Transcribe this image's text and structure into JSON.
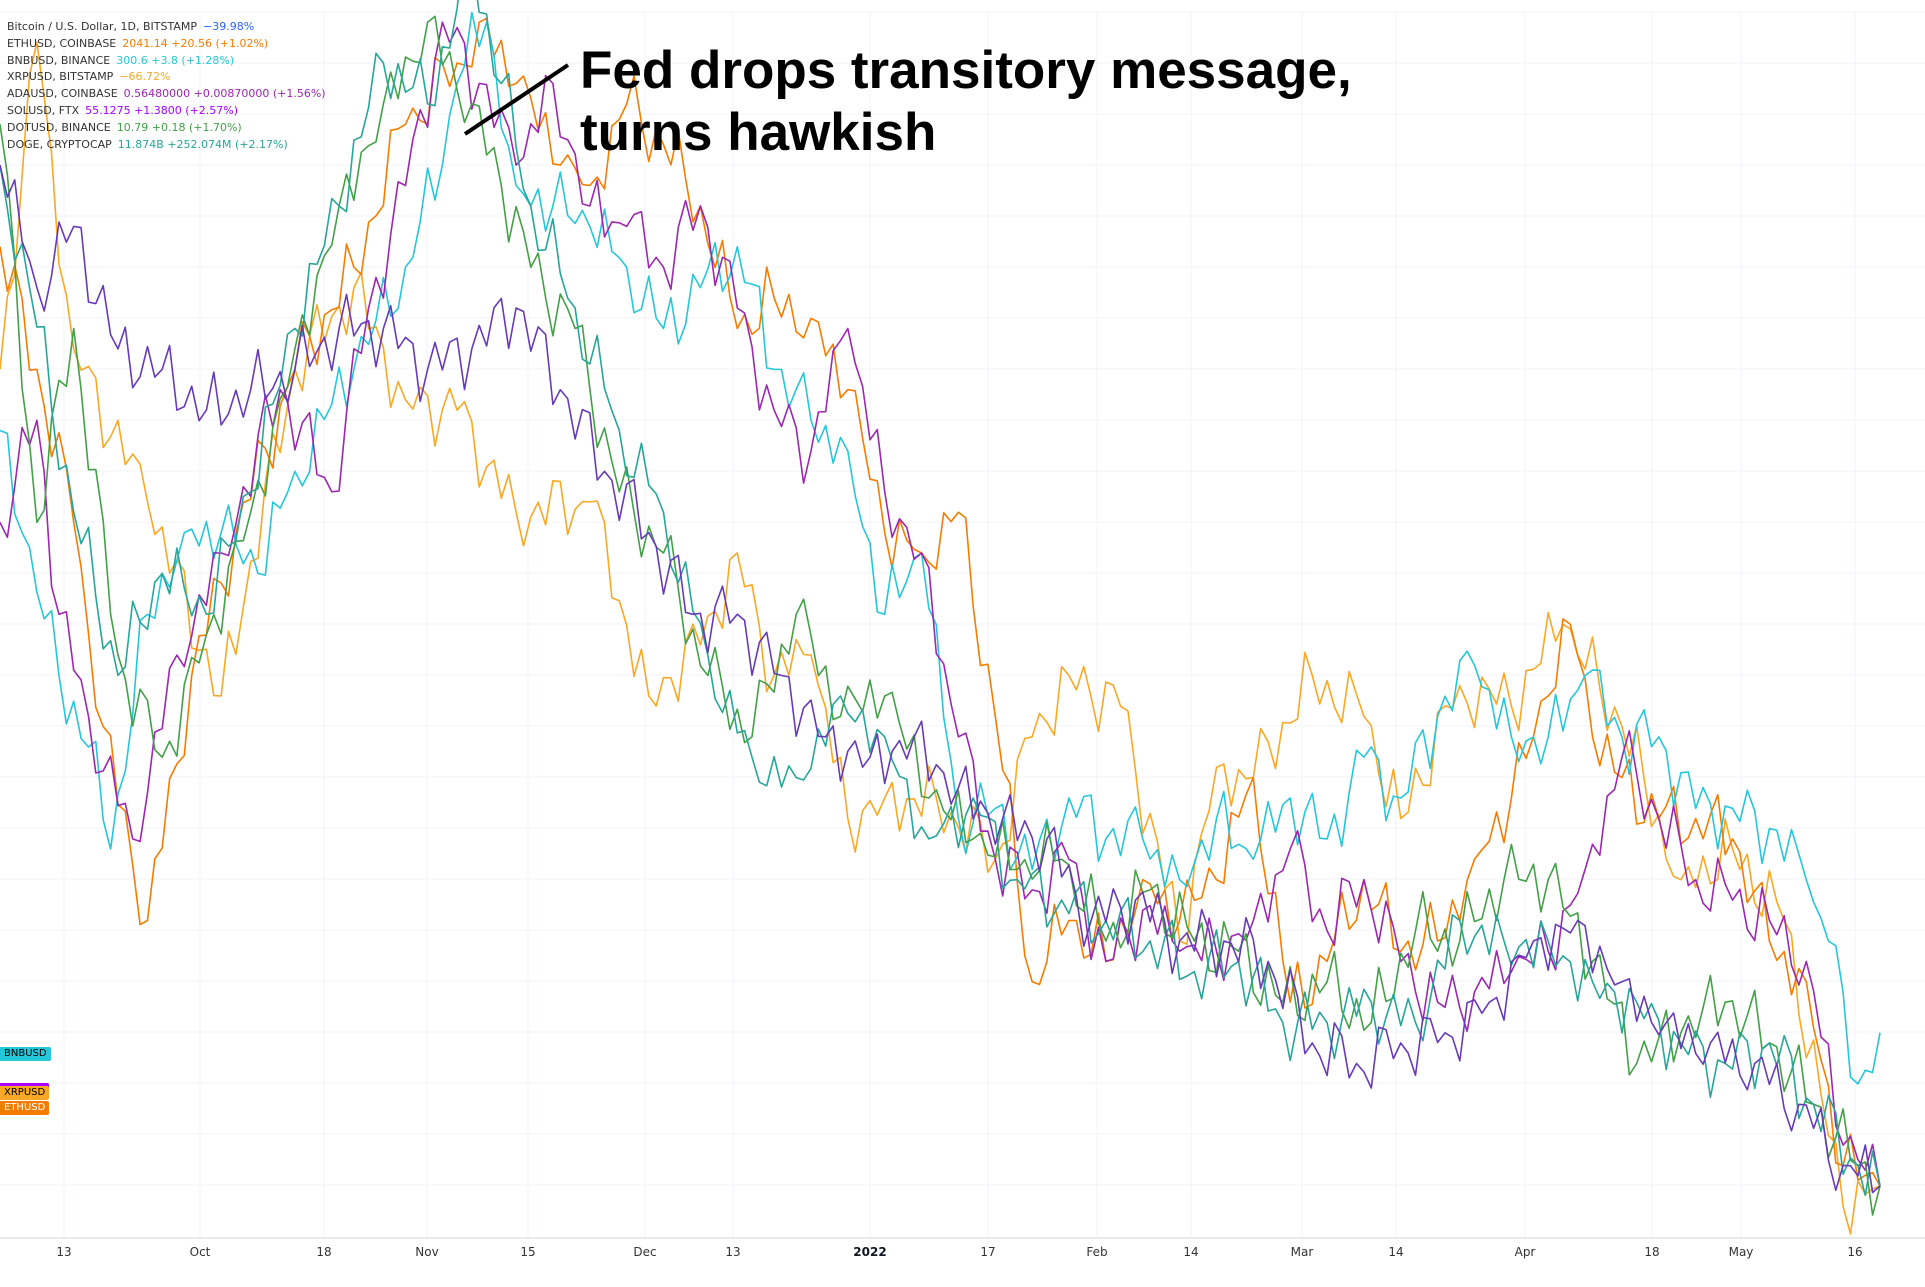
{
  "legend": [
    {
      "name": "Bitcoin / U.S. Dollar, 1D, BITSTAMP",
      "value": "−39.98%",
      "color": "#2962ff"
    },
    {
      "name": "ETHUSD, COINBASE",
      "value": "2041.14  +20.56 (+1.02%)",
      "color": "#f57c00"
    },
    {
      "name": "BNBUSD, BINANCE",
      "value": "300.6  +3.8 (+1.28%)",
      "color": "#26c6da"
    },
    {
      "name": "XRPUSD, BITSTAMP",
      "value": "−66.72%",
      "color": "#f9a825"
    },
    {
      "name": "ADAUSD, COINBASE",
      "value": "0.56480000  +0.00870000 (+1.56%)",
      "color": "#9c27b0"
    },
    {
      "name": "SOLUSD, FTX",
      "value": "55.1275  +1.3800 (+2.57%)",
      "color": "#aa00ff"
    },
    {
      "name": "DOTUSD, BINANCE",
      "value": "10.79  +0.18 (+1.70%)",
      "color": "#43a047"
    },
    {
      "name": "DOGE, CRYPTOCAP",
      "value": "11.874B  +252.074M (+2.17%)",
      "color": "#26a69a"
    }
  ],
  "annotation": {
    "line1": "Fed drops transitory message,",
    "line2": "turns hawkish"
  },
  "price_tags": [
    {
      "label": "BNBUSD",
      "color": "#26c6da"
    },
    {
      "label": "XRPUSD",
      "color": "#f9a825"
    },
    {
      "label": "ETHUSD",
      "color": "#f57c00"
    }
  ],
  "chart_data": {
    "type": "line",
    "x_tick_labels": [
      "13",
      "Oct",
      "18",
      "Nov",
      "15",
      "Dec",
      "13",
      "2022",
      "17",
      "Feb",
      "14",
      "Mar",
      "14",
      "Apr",
      "18",
      "May",
      "16"
    ],
    "y_axis": "percent change (unlabeled)",
    "grid": true,
    "series": [
      {
        "name": "XRPUSD",
        "color": "#f9a825",
        "width": 1.6,
        "x": [
          0,
          5,
          10,
          20,
          30,
          40,
          48,
          55,
          62,
          70,
          80,
          88,
          95,
          100,
          105,
          110,
          115,
          120,
          127,
          135,
          140,
          145,
          152,
          160,
          165,
          170,
          178,
          185,
          190,
          198,
          205,
          212,
          220,
          228,
          235,
          242,
          250,
          255
        ],
        "y": [
          10,
          42,
          12,
          -3,
          -22,
          10,
          18,
          7,
          6,
          -4,
          -3,
          -22,
          -17,
          -8,
          -20,
          -18,
          -34,
          -32,
          -32,
          -38,
          -26,
          -20,
          -23,
          -46,
          -29,
          -30,
          -20,
          -24,
          -34,
          -21,
          -23,
          -15,
          -25,
          -40,
          -37,
          -44,
          -72,
          -70
        ]
      },
      {
        "name": "ETHUSD",
        "color": "#f57c00",
        "width": 1.6,
        "x": [
          0,
          5,
          10,
          14,
          20,
          26,
          32,
          40,
          48,
          55,
          62,
          65,
          70,
          76,
          80,
          85,
          90,
          95,
          100,
          105,
          110,
          115,
          120,
          125,
          130,
          135,
          140,
          145,
          150,
          155,
          160,
          165,
          170,
          175,
          180,
          185,
          190,
          195,
          200,
          205,
          210,
          213,
          216,
          220,
          225,
          230,
          235,
          240,
          245,
          250,
          255
        ],
        "y": [
          22,
          10,
          -5,
          -25,
          -44,
          -20,
          -6,
          10,
          20,
          34,
          40,
          44,
          38,
          30,
          28,
          36,
          32,
          26,
          14,
          17,
          15,
          8,
          -6,
          -8,
          -4,
          -24,
          -50,
          -44,
          -48,
          -40,
          -44,
          -40,
          -30,
          -52,
          -48,
          -40,
          -47,
          -46,
          -38,
          -32,
          -22,
          -15,
          -26,
          -30,
          -34,
          -34,
          -36,
          -46,
          -50,
          -68,
          -70
        ]
      },
      {
        "name": "BNBUSD",
        "color": "#26c6da",
        "width": 1.6,
        "x": [
          0,
          3,
          8,
          12,
          15,
          20,
          25,
          30,
          35,
          40,
          48,
          55,
          60,
          62,
          66,
          70,
          75,
          80,
          85,
          90,
          95,
          100,
          105,
          110,
          115,
          120,
          125,
          130,
          135,
          140,
          145,
          150,
          155,
          160,
          165,
          170,
          175,
          180,
          185,
          190,
          195,
          200,
          205,
          210,
          215,
          220,
          225,
          230,
          235,
          240,
          245,
          248,
          252,
          255
        ],
        "y": [
          4,
          -6,
          -20,
          -27,
          -37,
          -14,
          -6,
          -6,
          -10,
          0,
          10,
          20,
          30,
          38,
          44,
          28,
          26,
          24,
          20,
          14,
          18,
          22,
          10,
          5,
          2,
          -14,
          -8,
          -34,
          -33,
          -39,
          -32,
          -36,
          -36,
          -40,
          -34,
          -38,
          -32,
          -36,
          -28,
          -32,
          -24,
          -19,
          -26,
          -26,
          -20,
          -26,
          -26,
          -33,
          -33,
          -35,
          -40,
          -46,
          -60,
          -55
        ]
      },
      {
        "name": "ADAUSD",
        "color": "#9c27b0",
        "width": 1.6,
        "x": [
          0,
          5,
          8,
          12,
          18,
          24,
          30,
          38,
          45,
          50,
          55,
          60,
          65,
          70,
          75,
          80,
          85,
          90,
          95,
          100,
          105,
          110,
          115,
          120,
          125,
          130,
          135,
          140,
          145,
          150,
          155,
          160,
          165,
          170,
          175,
          180,
          185,
          190,
          195,
          200,
          205,
          210,
          215,
          220,
          225,
          230,
          235,
          240,
          245,
          250,
          255
        ],
        "y": [
          -5,
          5,
          -14,
          -24,
          -36,
          -18,
          -8,
          8,
          -2,
          16,
          28,
          44,
          38,
          30,
          38,
          26,
          24,
          20,
          26,
          16,
          6,
          2,
          14,
          -2,
          -8,
          -26,
          -38,
          -41,
          -38,
          -48,
          -43,
          -47,
          -47,
          -44,
          -37,
          -45,
          -40,
          -48,
          -52,
          -51,
          -49,
          -47,
          -39,
          -28,
          -34,
          -40,
          -42,
          -44,
          -48,
          -66,
          -70
        ]
      },
      {
        "name": "DOTUSD",
        "color": "#43a047",
        "width": 1.6,
        "x": [
          0,
          5,
          10,
          16,
          22,
          28,
          34,
          40,
          46,
          52,
          58,
          64,
          68,
          72,
          78,
          84,
          90,
          96,
          102,
          108,
          114,
          120,
          126,
          132,
          138,
          144,
          150,
          156,
          162,
          168,
          174,
          180,
          186,
          192,
          198,
          204,
          210,
          216,
          222,
          228,
          234,
          240,
          246,
          252,
          255
        ],
        "y": [
          34,
          -5,
          14,
          -18,
          -28,
          -16,
          -4,
          12,
          26,
          36,
          44,
          36,
          28,
          20,
          14,
          -2,
          -8,
          -20,
          -26,
          -14,
          -24,
          -22,
          -32,
          -36,
          -39,
          -38,
          -46,
          -41,
          -46,
          -47,
          -52,
          -50,
          -54,
          -45,
          -46,
          -40,
          -40,
          -48,
          -58,
          -55,
          -52,
          -56,
          -62,
          -68,
          -70
        ]
      },
      {
        "name": "DOGE",
        "color": "#26a69a",
        "width": 1.6,
        "x": [
          0,
          4,
          10,
          16,
          22,
          28,
          34,
          40,
          46,
          52,
          58,
          64,
          68,
          72,
          78,
          84,
          90,
          96,
          102,
          108,
          114,
          120,
          126,
          132,
          138,
          144,
          150,
          156,
          162,
          168,
          174,
          180,
          186,
          192,
          198,
          204,
          210,
          216,
          222,
          228,
          234,
          240,
          246,
          252,
          255
        ],
        "y": [
          30,
          18,
          -4,
          -20,
          -10,
          -14,
          -2,
          14,
          26,
          40,
          36,
          50,
          38,
          26,
          16,
          4,
          -4,
          -18,
          -28,
          -30,
          -22,
          -26,
          -36,
          -32,
          -40,
          -42,
          -44,
          -46,
          -49,
          -48,
          -54,
          -54,
          -52,
          -54,
          -44,
          -46,
          -46,
          -50,
          -52,
          -56,
          -58,
          -56,
          -62,
          -68,
          -70
        ]
      },
      {
        "name": "Bitcoin",
        "color": "#673ab7",
        "width": 1.6,
        "x": [
          0,
          5,
          10,
          16,
          22,
          28,
          34,
          40,
          46,
          52,
          58,
          64,
          70,
          76,
          82,
          88,
          94,
          100,
          106,
          112,
          118,
          124,
          130,
          136,
          142,
          148,
          154,
          160,
          166,
          172,
          178,
          184,
          190,
          196,
          202,
          208,
          214,
          220,
          226,
          232,
          238,
          244,
          250,
          255
        ],
        "y": [
          30,
          18,
          24,
          12,
          10,
          6,
          8,
          10,
          14,
          14,
          10,
          12,
          16,
          8,
          0,
          -6,
          -14,
          -14,
          -20,
          -26,
          -28,
          -26,
          -31,
          -34,
          -36,
          -44,
          -42,
          -46,
          -46,
          -48,
          -56,
          -58,
          -56,
          -55,
          -52,
          -46,
          -44,
          -50,
          -54,
          -56,
          -58,
          -62,
          -68,
          -70
        ]
      }
    ]
  }
}
